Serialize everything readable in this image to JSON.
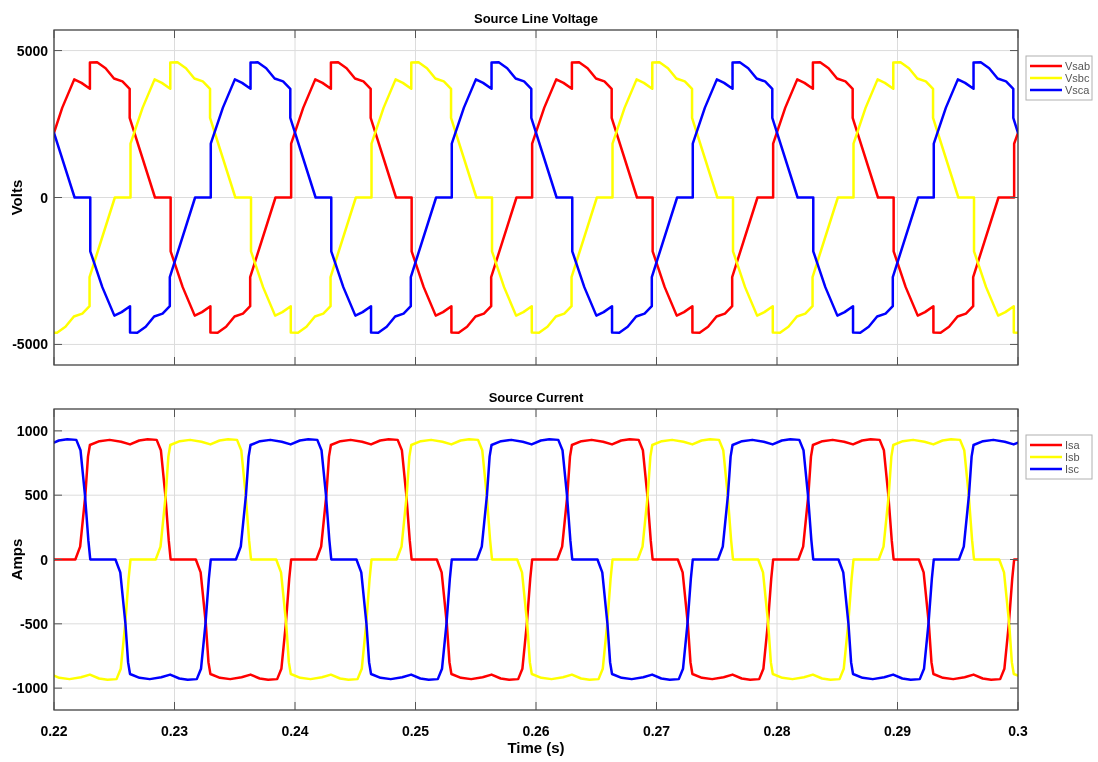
{
  "chart_data": [
    {
      "type": "line",
      "title": "Source Line Voltage",
      "ylabel": "Volts",
      "xlim": [
        0.22,
        0.3
      ],
      "ylim": [
        -5700,
        5700
      ],
      "xticks": [
        0.22,
        0.23,
        0.24,
        0.25,
        0.26,
        0.27,
        0.28,
        0.29,
        0.3
      ],
      "yticks": [
        -5000,
        0,
        5000
      ],
      "grid": true,
      "legend": "right",
      "tick_labels": "y",
      "series": [
        {
          "name": "Vsab",
          "color": "#ff0000",
          "x": [
            0.22,
            0.22068,
            0.22168,
            0.22228,
            0.22298,
            0.22298,
            0.22358,
            0.22428,
            0.22498,
            0.22568,
            0.22628,
            0.22628,
            0.22838,
            0.22968,
            0.22968,
            0.23068,
            0.23168,
            0.23228,
            0.23298,
            0.23298,
            0.23358,
            0.23428,
            0.23498,
            0.23568,
            0.23628,
            0.23628,
            0.23838,
            0.23968,
            0.23968,
            0.24068,
            0.24168,
            0.24228,
            0.24298,
            0.24298,
            0.24358,
            0.24428,
            0.24498,
            0.24568,
            0.24628,
            0.24628,
            0.24838,
            0.24968,
            0.24968,
            0.25068,
            0.25168,
            0.25228,
            0.25298,
            0.25298,
            0.25358,
            0.25428,
            0.25498,
            0.25568,
            0.25628,
            0.25628,
            0.25838,
            0.25968,
            0.25968,
            0.26068,
            0.26168,
            0.26228,
            0.26298,
            0.26298,
            0.26358,
            0.26428,
            0.26498,
            0.26568,
            0.26628,
            0.26628,
            0.26838,
            0.26968,
            0.26968,
            0.27068,
            0.27168,
            0.27228,
            0.27298,
            0.27298,
            0.27358,
            0.27428,
            0.27498,
            0.27568,
            0.27628,
            0.27628,
            0.27838,
            0.27968,
            0.27968,
            0.28068,
            0.28168,
            0.28228,
            0.28298,
            0.28298,
            0.28358,
            0.28428,
            0.28498,
            0.28568,
            0.28628,
            0.28628,
            0.28838,
            0.28968,
            0.28968,
            0.29068,
            0.29168,
            0.29228,
            0.29298,
            0.29298,
            0.29358,
            0.29428,
            0.29498,
            0.29568,
            0.29628,
            0.29628,
            0.29838,
            0.29968,
            0.29968,
            0.3
          ],
          "values": [
            2200,
            3050,
            4020,
            3900,
            3700,
            4590,
            4600,
            4400,
            4050,
            3950,
            3700,
            2710,
            0,
            0,
            -1830,
            -3050,
            -4020,
            -3900,
            -3700,
            -4590,
            -4600,
            -4400,
            -4050,
            -3950,
            -3700,
            -2710,
            0,
            0,
            1830,
            3050,
            4020,
            3900,
            3700,
            4590,
            4600,
            4400,
            4050,
            3950,
            3700,
            2710,
            0,
            0,
            -1830,
            -3050,
            -4020,
            -3900,
            -3700,
            -4590,
            -4600,
            -4400,
            -4050,
            -3950,
            -3700,
            -2710,
            0,
            0,
            1830,
            3050,
            4020,
            3900,
            3700,
            4590,
            4600,
            4400,
            4050,
            3950,
            3700,
            2710,
            0,
            0,
            -1830,
            -3050,
            -4020,
            -3900,
            -3700,
            -4590,
            -4600,
            -4400,
            -4050,
            -3950,
            -3700,
            -2710,
            0,
            0,
            1830,
            3050,
            4020,
            3900,
            3700,
            4590,
            4600,
            4400,
            4050,
            3950,
            3700,
            2710,
            0,
            0,
            -1830,
            -3050,
            -4020,
            -3900,
            -3700,
            -4590,
            -4600,
            -4400,
            -4050,
            -3950,
            -3700,
            -2710,
            0,
            0,
            1830,
            2200
          ]
        },
        {
          "name": "Vsbc",
          "color": "#ffff00",
          "x": [
            0.22,
            0.22025,
            0.22095,
            0.22165,
            0.22235,
            0.22295,
            0.22295,
            0.22505,
            0.22635,
            0.22635,
            0.22735,
            0.22835,
            0.22895,
            0.22965,
            0.22965,
            0.23025,
            0.23095,
            0.23165,
            0.23235,
            0.23295,
            0.23295,
            0.23505,
            0.23635,
            0.23635,
            0.23735,
            0.23835,
            0.23895,
            0.23965,
            0.23965,
            0.24025,
            0.24095,
            0.24165,
            0.24235,
            0.24295,
            0.24295,
            0.24505,
            0.24635,
            0.24635,
            0.24735,
            0.24835,
            0.24895,
            0.24965,
            0.24965,
            0.25025,
            0.25095,
            0.25165,
            0.25235,
            0.25295,
            0.25295,
            0.25505,
            0.25635,
            0.25635,
            0.25735,
            0.25835,
            0.25895,
            0.25965,
            0.25965,
            0.26025,
            0.26095,
            0.26165,
            0.26235,
            0.26295,
            0.26295,
            0.26505,
            0.26635,
            0.26635,
            0.26735,
            0.26835,
            0.26895,
            0.26965,
            0.26965,
            0.27025,
            0.27095,
            0.27165,
            0.27235,
            0.27295,
            0.27295,
            0.27505,
            0.27635,
            0.27635,
            0.27735,
            0.27835,
            0.27895,
            0.27965,
            0.27965,
            0.28025,
            0.28095,
            0.28165,
            0.28235,
            0.28295,
            0.28295,
            0.28505,
            0.28635,
            0.28635,
            0.28735,
            0.28835,
            0.28895,
            0.28965,
            0.28965,
            0.29025,
            0.29095,
            0.29165,
            0.29235,
            0.29295,
            0.29295,
            0.29505,
            0.29635,
            0.29635,
            0.29735,
            0.29835,
            0.29895,
            0.29965,
            0.29965,
            0.3
          ],
          "values": [
            -4600,
            -4600,
            -4400,
            -4050,
            -3950,
            -3700,
            -2710,
            0,
            0,
            1830,
            3050,
            4020,
            3900,
            3700,
            4590,
            4600,
            4400,
            4050,
            3950,
            3700,
            2710,
            0,
            0,
            -1830,
            -3050,
            -4020,
            -3900,
            -3700,
            -4590,
            -4600,
            -4400,
            -4050,
            -3950,
            -3700,
            -2710,
            0,
            0,
            1830,
            3050,
            4020,
            3900,
            3700,
            4590,
            4600,
            4400,
            4050,
            3950,
            3700,
            2710,
            0,
            0,
            -1830,
            -3050,
            -4020,
            -3900,
            -3700,
            -4590,
            -4600,
            -4400,
            -4050,
            -3950,
            -3700,
            -2710,
            0,
            0,
            1830,
            3050,
            4020,
            3900,
            3700,
            4590,
            4600,
            4400,
            4050,
            3950,
            3700,
            2710,
            0,
            0,
            -1830,
            -3050,
            -4020,
            -3900,
            -3700,
            -4590,
            -4600,
            -4400,
            -4050,
            -3950,
            -3700,
            -2710,
            0,
            0,
            1830,
            3050,
            4020,
            3900,
            3700,
            4590,
            4600,
            4400,
            4050,
            3950,
            3700,
            2710,
            0,
            0,
            -1830,
            -3050,
            -4020,
            -3900,
            -3700,
            -4590,
            -4600
          ]
        },
        {
          "name": "Vsca",
          "color": "#0000ff",
          "x": [
            0.22,
            0.22171,
            0.22301,
            0.22301,
            0.22401,
            0.22501,
            0.22561,
            0.22631,
            0.22631,
            0.22691,
            0.22761,
            0.22831,
            0.22901,
            0.22961,
            0.22961,
            0.23171,
            0.23301,
            0.23301,
            0.23401,
            0.23501,
            0.23561,
            0.23631,
            0.23631,
            0.23691,
            0.23761,
            0.23831,
            0.23901,
            0.23961,
            0.23961,
            0.24171,
            0.24301,
            0.24301,
            0.24401,
            0.24501,
            0.24561,
            0.24631,
            0.24631,
            0.24691,
            0.24761,
            0.24831,
            0.24901,
            0.24961,
            0.24961,
            0.25171,
            0.25301,
            0.25301,
            0.25401,
            0.25501,
            0.25561,
            0.25631,
            0.25631,
            0.25691,
            0.25761,
            0.25831,
            0.25901,
            0.25961,
            0.25961,
            0.26171,
            0.26301,
            0.26301,
            0.26401,
            0.26501,
            0.26561,
            0.26631,
            0.26631,
            0.26691,
            0.26761,
            0.26831,
            0.26901,
            0.26961,
            0.26961,
            0.27171,
            0.27301,
            0.27301,
            0.27401,
            0.27501,
            0.27561,
            0.27631,
            0.27631,
            0.27691,
            0.27761,
            0.27831,
            0.27901,
            0.27961,
            0.27961,
            0.28171,
            0.28301,
            0.28301,
            0.28401,
            0.28501,
            0.28561,
            0.28631,
            0.28631,
            0.28691,
            0.28761,
            0.28831,
            0.28901,
            0.28961,
            0.28961,
            0.29171,
            0.29301,
            0.29301,
            0.29401,
            0.29501,
            0.29561,
            0.29631,
            0.29631,
            0.29691,
            0.29761,
            0.29831,
            0.29901,
            0.29961,
            0.29961,
            0.3
          ],
          "values": [
            2200,
            0,
            0,
            -1830,
            -3050,
            -4020,
            -3900,
            -3700,
            -4590,
            -4600,
            -4400,
            -4050,
            -3950,
            -3700,
            -2710,
            0,
            0,
            1830,
            3050,
            4020,
            3900,
            3700,
            4590,
            4600,
            4400,
            4050,
            3950,
            3700,
            2710,
            0,
            0,
            -1830,
            -3050,
            -4020,
            -3900,
            -3700,
            -4590,
            -4600,
            -4400,
            -4050,
            -3950,
            -3700,
            -2710,
            0,
            0,
            1830,
            3050,
            4020,
            3900,
            3700,
            4590,
            4600,
            4400,
            4050,
            3950,
            3700,
            2710,
            0,
            0,
            -1830,
            -3050,
            -4020,
            -3900,
            -3700,
            -4590,
            -4600,
            -4400,
            -4050,
            -3950,
            -3700,
            -2710,
            0,
            0,
            1830,
            3050,
            4020,
            3900,
            3700,
            4590,
            4600,
            4400,
            4050,
            3950,
            3700,
            2710,
            0,
            0,
            -1830,
            -3050,
            -4020,
            -3900,
            -3700,
            -4590,
            -4600,
            -4400,
            -4050,
            -3950,
            -3700,
            -2710,
            0,
            0,
            1830,
            3050,
            4020,
            3900,
            3700,
            4590,
            4600,
            4400,
            4050,
            3950,
            3700,
            2710,
            2200
          ]
        }
      ]
    },
    {
      "type": "line",
      "title": "Source Current",
      "xlabel": "Time (s)",
      "ylabel": "Amps",
      "xlim": [
        0.22,
        0.3
      ],
      "ylim": [
        -1170,
        1170
      ],
      "xticks": [
        0.22,
        0.23,
        0.24,
        0.25,
        0.26,
        0.27,
        0.28,
        0.29,
        0.3
      ],
      "yticks": [
        -1000,
        -500,
        0,
        500,
        1000
      ],
      "grid": true,
      "legend": "right",
      "series": [
        {
          "name": "Isa",
          "color": "#ff0000",
          "x": [
            0.22,
            0.22177,
            0.22217,
            0.2226,
            0.22282,
            0.22298,
            0.22377,
            0.22462,
            0.22557,
            0.22631,
            0.22707,
            0.22777,
            0.22852,
            0.22887,
            0.22924,
            0.22952,
            0.22968,
            0.23177,
            0.23217,
            0.2326,
            0.23282,
            0.23298,
            0.23377,
            0.23462,
            0.23557,
            0.23631,
            0.23707,
            0.23777,
            0.23852,
            0.23887,
            0.23924,
            0.23952,
            0.23968,
            0.24177,
            0.24217,
            0.2426,
            0.24282,
            0.24298,
            0.24377,
            0.24462,
            0.24557,
            0.24631,
            0.24707,
            0.24777,
            0.24852,
            0.24887,
            0.24924,
            0.24952,
            0.24968,
            0.25177,
            0.25217,
            0.2526,
            0.25282,
            0.25298,
            0.25377,
            0.25462,
            0.25557,
            0.25631,
            0.25707,
            0.25777,
            0.25852,
            0.25887,
            0.25924,
            0.25952,
            0.25968,
            0.26177,
            0.26217,
            0.2626,
            0.26282,
            0.26298,
            0.26377,
            0.26462,
            0.26557,
            0.26631,
            0.26707,
            0.26777,
            0.26852,
            0.26887,
            0.26924,
            0.26952,
            0.26968,
            0.27177,
            0.27217,
            0.2726,
            0.27282,
            0.27298,
            0.27377,
            0.27462,
            0.27557,
            0.27631,
            0.27707,
            0.27777,
            0.27852,
            0.27887,
            0.27924,
            0.27952,
            0.27968,
            0.28177,
            0.28217,
            0.2826,
            0.28282,
            0.28298,
            0.28377,
            0.28462,
            0.28557,
            0.28631,
            0.28707,
            0.28777,
            0.28852,
            0.28887,
            0.28924,
            0.28952,
            0.28968,
            0.29177,
            0.29217,
            0.2926,
            0.29282,
            0.29298,
            0.29377,
            0.29462,
            0.29557,
            0.29631,
            0.29707,
            0.29777,
            0.29852,
            0.29887,
            0.29924,
            0.29952,
            0.29968,
            0.3
          ],
          "values": [
            0,
            0,
            100,
            500,
            800,
            890,
            920,
            930,
            915,
            895,
            925,
            935,
            930,
            850,
            500,
            150,
            0,
            0,
            -100,
            -500,
            -800,
            -890,
            -920,
            -930,
            -915,
            -895,
            -925,
            -935,
            -930,
            -850,
            -500,
            -150,
            0,
            0,
            100,
            500,
            800,
            890,
            920,
            930,
            915,
            895,
            925,
            935,
            930,
            850,
            500,
            150,
            0,
            0,
            -100,
            -500,
            -800,
            -890,
            -920,
            -930,
            -915,
            -895,
            -925,
            -935,
            -930,
            -850,
            -500,
            -150,
            0,
            0,
            100,
            500,
            800,
            890,
            920,
            930,
            915,
            895,
            925,
            935,
            930,
            850,
            500,
            150,
            0,
            0,
            -100,
            -500,
            -800,
            -890,
            -920,
            -930,
            -915,
            -895,
            -925,
            -935,
            -930,
            -850,
            -500,
            -150,
            0,
            0,
            100,
            500,
            800,
            890,
            920,
            930,
            915,
            895,
            925,
            935,
            930,
            850,
            500,
            150,
            0,
            0,
            -100,
            -500,
            -800,
            -890,
            -920,
            -930,
            -915,
            -895,
            -925,
            -935,
            -930,
            -850,
            -500,
            -150,
            0,
            0
          ]
        },
        {
          "name": "Isb",
          "color": "#ffff00",
          "x": [
            0.22,
            0.22044,
            0.22129,
            0.22224,
            0.22298,
            0.22374,
            0.22444,
            0.22519,
            0.22554,
            0.22591,
            0.22619,
            0.22635,
            0.22844,
            0.22884,
            0.22927,
            0.22949,
            0.22965,
            0.23044,
            0.23129,
            0.23224,
            0.23298,
            0.23374,
            0.23444,
            0.23519,
            0.23554,
            0.23591,
            0.23619,
            0.23635,
            0.23844,
            0.23884,
            0.23927,
            0.23949,
            0.23965,
            0.24044,
            0.24129,
            0.24224,
            0.24298,
            0.24374,
            0.24444,
            0.24519,
            0.24554,
            0.24591,
            0.24619,
            0.24635,
            0.24844,
            0.24884,
            0.24927,
            0.24949,
            0.24965,
            0.25044,
            0.25129,
            0.25224,
            0.25298,
            0.25374,
            0.25444,
            0.25519,
            0.25554,
            0.25591,
            0.25619,
            0.25635,
            0.25844,
            0.25884,
            0.25927,
            0.25949,
            0.25965,
            0.26044,
            0.26129,
            0.26224,
            0.26298,
            0.26374,
            0.26444,
            0.26519,
            0.26554,
            0.26591,
            0.26619,
            0.26635,
            0.26844,
            0.26884,
            0.26927,
            0.26949,
            0.26965,
            0.27044,
            0.27129,
            0.27224,
            0.27298,
            0.27374,
            0.27444,
            0.27519,
            0.27554,
            0.27591,
            0.27619,
            0.27635,
            0.27844,
            0.27884,
            0.27927,
            0.27949,
            0.27965,
            0.28044,
            0.28129,
            0.28224,
            0.28298,
            0.28374,
            0.28444,
            0.28519,
            0.28554,
            0.28591,
            0.28619,
            0.28635,
            0.28844,
            0.28884,
            0.28927,
            0.28949,
            0.28965,
            0.29044,
            0.29129,
            0.29224,
            0.29298,
            0.29374,
            0.29444,
            0.29519,
            0.29554,
            0.29591,
            0.29619,
            0.29635,
            0.29844,
            0.29884,
            0.29927,
            0.29949,
            0.29965,
            0.3
          ],
          "values": [
            -903,
            -920,
            -930,
            -915,
            -895,
            -925,
            -935,
            -930,
            -850,
            -500,
            -150,
            0,
            0,
            100,
            500,
            800,
            890,
            920,
            930,
            915,
            895,
            925,
            935,
            930,
            850,
            500,
            150,
            0,
            0,
            -100,
            -500,
            -800,
            -890,
            -920,
            -930,
            -915,
            -895,
            -925,
            -935,
            -930,
            -850,
            -500,
            -150,
            0,
            0,
            100,
            500,
            800,
            890,
            920,
            930,
            915,
            895,
            925,
            935,
            930,
            850,
            500,
            150,
            0,
            0,
            -100,
            -500,
            -800,
            -890,
            -920,
            -930,
            -915,
            -895,
            -925,
            -935,
            -930,
            -850,
            -500,
            -150,
            0,
            0,
            100,
            500,
            800,
            890,
            920,
            930,
            915,
            895,
            925,
            935,
            930,
            850,
            500,
            150,
            0,
            0,
            -100,
            -500,
            -800,
            -890,
            -920,
            -930,
            -915,
            -895,
            -925,
            -935,
            -930,
            -850,
            -500,
            -150,
            0,
            0,
            100,
            500,
            800,
            890,
            920,
            930,
            915,
            895,
            925,
            935,
            930,
            850,
            500,
            150,
            0,
            0,
            -100,
            -500,
            -800,
            -890,
            -903
          ]
        },
        {
          "name": "Isc",
          "color": "#0000ff",
          "x": [
            0.22,
            0.2204,
            0.2211,
            0.22185,
            0.2222,
            0.22257,
            0.22285,
            0.22301,
            0.2251,
            0.2255,
            0.22593,
            0.22615,
            0.22631,
            0.2271,
            0.22795,
            0.2289,
            0.22964,
            0.2304,
            0.2311,
            0.23185,
            0.2322,
            0.23257,
            0.23285,
            0.23301,
            0.2351,
            0.2355,
            0.23593,
            0.23615,
            0.23631,
            0.2371,
            0.23795,
            0.2389,
            0.23964,
            0.2404,
            0.2411,
            0.24185,
            0.2422,
            0.24257,
            0.24285,
            0.24301,
            0.2451,
            0.2455,
            0.24593,
            0.24615,
            0.24631,
            0.2471,
            0.24795,
            0.2489,
            0.24964,
            0.2504,
            0.2511,
            0.25185,
            0.2522,
            0.25257,
            0.25285,
            0.25301,
            0.2551,
            0.2555,
            0.25593,
            0.25615,
            0.25631,
            0.2571,
            0.25795,
            0.2589,
            0.25964,
            0.2604,
            0.2611,
            0.26185,
            0.2622,
            0.26257,
            0.26285,
            0.26301,
            0.2651,
            0.2655,
            0.26593,
            0.26615,
            0.26631,
            0.2671,
            0.26795,
            0.2689,
            0.26964,
            0.2704,
            0.2711,
            0.27185,
            0.2722,
            0.27257,
            0.27285,
            0.27301,
            0.2751,
            0.2755,
            0.27593,
            0.27615,
            0.27631,
            0.2771,
            0.27795,
            0.2789,
            0.27964,
            0.2804,
            0.2811,
            0.28185,
            0.2822,
            0.28257,
            0.28285,
            0.28301,
            0.2851,
            0.2855,
            0.28593,
            0.28615,
            0.28631,
            0.2871,
            0.28795,
            0.2889,
            0.28964,
            0.2904,
            0.2911,
            0.29185,
            0.2922,
            0.29257,
            0.29285,
            0.29301,
            0.2951,
            0.2955,
            0.29593,
            0.29615,
            0.29631,
            0.2971,
            0.29795,
            0.2989,
            0.29964,
            0.3
          ],
          "values": [
            909,
            925,
            935,
            930,
            850,
            500,
            150,
            0,
            0,
            -100,
            -500,
            -800,
            -890,
            -920,
            -930,
            -915,
            -895,
            -925,
            -935,
            -930,
            -850,
            -500,
            -150,
            0,
            0,
            100,
            500,
            800,
            890,
            920,
            930,
            915,
            895,
            925,
            935,
            930,
            850,
            500,
            150,
            0,
            0,
            -100,
            -500,
            -800,
            -890,
            -920,
            -930,
            -915,
            -895,
            -925,
            -935,
            -930,
            -850,
            -500,
            -150,
            0,
            0,
            100,
            500,
            800,
            890,
            920,
            930,
            915,
            895,
            925,
            935,
            930,
            850,
            500,
            150,
            0,
            0,
            -100,
            -500,
            -800,
            -890,
            -920,
            -930,
            -915,
            -895,
            -925,
            -935,
            -930,
            -850,
            -500,
            -150,
            0,
            0,
            100,
            500,
            800,
            890,
            920,
            930,
            915,
            895,
            925,
            935,
            930,
            850,
            500,
            150,
            0,
            0,
            -100,
            -500,
            -800,
            -890,
            -920,
            -930,
            -915,
            -895,
            -925,
            -935,
            -930,
            -850,
            -500,
            -150,
            0,
            0,
            100,
            500,
            800,
            890,
            920,
            930,
            915,
            895,
            909
          ]
        }
      ]
    }
  ]
}
